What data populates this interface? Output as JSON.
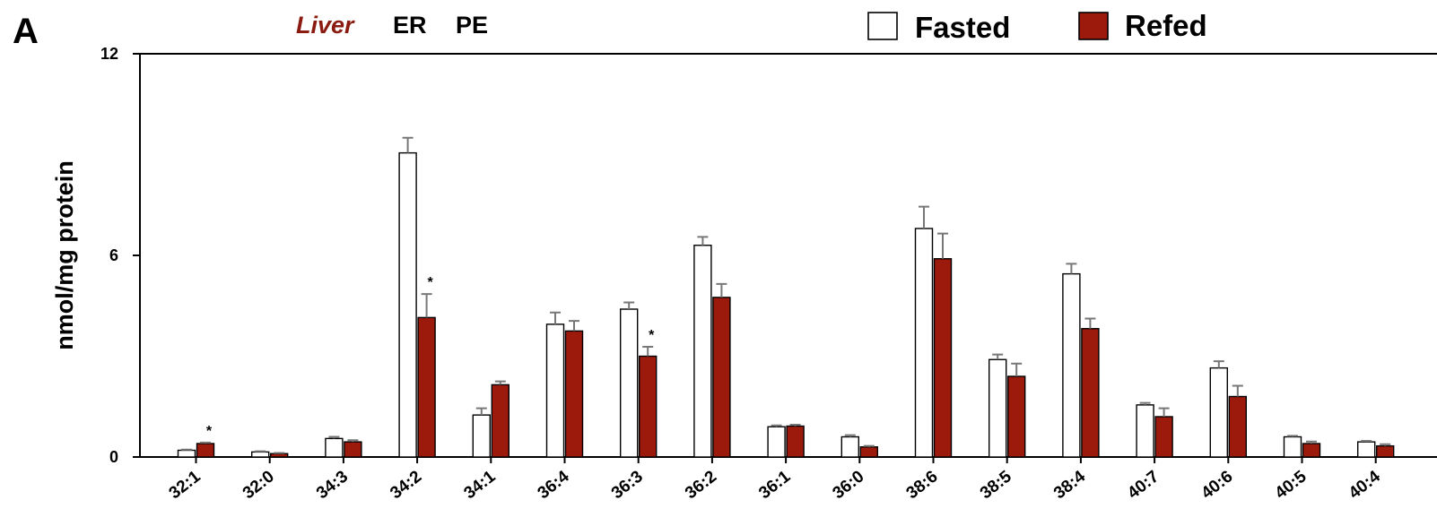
{
  "panel_label": "A",
  "title": {
    "tissue": "Liver",
    "compartment": "ER",
    "lipid_class": "PE"
  },
  "colors": {
    "fasted": "#ffffff",
    "refed": "#9b1a0c",
    "title_tissue": "#8b1a10",
    "error_bar": "#777777",
    "axis": "#000000"
  },
  "chart_data": {
    "type": "bar",
    "ylabel": "nmol/mg protein",
    "ylim": [
      0,
      12
    ],
    "yticks": [
      0,
      6,
      12
    ],
    "categories": [
      "32:1",
      "32:0",
      "34:3",
      "34:2",
      "34:1",
      "36:4",
      "36:3",
      "36:2",
      "36:1",
      "36:0",
      "38:6",
      "38:5",
      "38:4",
      "40:7",
      "40:6",
      "40:5",
      "40:4"
    ],
    "legend_position": "top-right",
    "series": [
      {
        "name": "Fasted",
        "values": [
          0.2,
          0.15,
          0.55,
          9.05,
          1.25,
          3.95,
          4.4,
          6.3,
          0.9,
          0.6,
          6.8,
          2.9,
          5.45,
          1.55,
          2.65,
          0.6,
          0.45
        ],
        "errors": [
          0.02,
          0.02,
          0.05,
          0.45,
          0.2,
          0.35,
          0.2,
          0.25,
          0.04,
          0.05,
          0.65,
          0.15,
          0.3,
          0.06,
          0.2,
          0.03,
          0.03
        ]
      },
      {
        "name": "Refed",
        "values": [
          0.4,
          0.1,
          0.45,
          4.15,
          2.15,
          3.75,
          3.0,
          4.75,
          0.92,
          0.3,
          5.9,
          2.4,
          3.82,
          1.2,
          1.8,
          0.4,
          0.33
        ],
        "errors": [
          0.03,
          0.02,
          0.05,
          0.7,
          0.1,
          0.3,
          0.28,
          0.4,
          0.04,
          0.03,
          0.75,
          0.38,
          0.3,
          0.25,
          0.32,
          0.06,
          0.05
        ]
      }
    ],
    "significance": [
      {
        "category": "32:1",
        "series": "Refed",
        "label": "*"
      },
      {
        "category": "34:2",
        "series": "Refed",
        "label": "*"
      },
      {
        "category": "36:3",
        "series": "Refed",
        "label": "*"
      }
    ]
  }
}
